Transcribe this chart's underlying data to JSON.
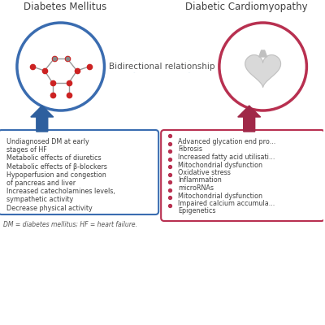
{
  "title_left": "Diabetes Mellitus",
  "title_right_full": "Diabetic Cardiomyopathy",
  "arrow_label": "Bidirectional relationship",
  "left_box_color": "#3A6CB0",
  "right_box_color": "#B83050",
  "arrow_color": "#8DB8D0",
  "blue_arrow_color": "#2E5F9E",
  "red_arrow_color": "#A02848",
  "left_items": [
    "Undiagnosed DM at early",
    "stages of HF",
    "Metabolic effects of diuretics",
    "Metabolic effects of β-blockers",
    "Hypoperfusion and congestion",
    "of pancreas and liver",
    "Increased catecholamines levels,",
    "sympathetic activity",
    "Decrease physical activity"
  ],
  "right_items": [
    "Advanced glycation end pro...",
    "Fibrosis",
    "Increased fatty acid utilisati...",
    "Mitochondrial dysfunction",
    "Oxidative stress",
    "Inflammation",
    "microRNAs",
    "Mitochondrial dysfunction",
    "Impaired calcium accumula...",
    "Epigenetics"
  ],
  "footer": "DM = diabetes mellitus; HF = heart failure.",
  "bg_color": "#FFFFFF",
  "text_color": "#404040",
  "title_color": "#404040"
}
